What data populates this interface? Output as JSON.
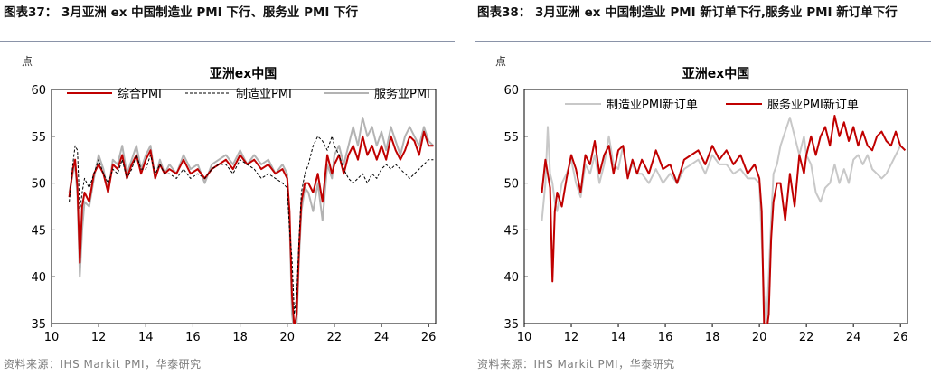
{
  "figures": [
    {
      "caption": "图表37： 3月亚洲 ex 中国制造业 PMI 下行、服务业 PMI 下行",
      "source": "资料来源：IHS Markit PMI，华泰研究"
    },
    {
      "caption": "图表38： 3月亚洲 ex 中国制造业 PMI 新订单下行,服务业 PMI 新订单下行",
      "source": "资料来源：IHS Markit PMI，华泰研究"
    }
  ],
  "chart_data": [
    {
      "type": "line",
      "title": "亚洲ex中国",
      "unit_label": "点",
      "xlabel": "",
      "ylabel": "",
      "xlim": [
        2010,
        2026.3
      ],
      "ylim": [
        35,
        60
      ],
      "x_ticks": [
        10,
        12,
        14,
        16,
        18,
        20,
        22,
        24,
        26
      ],
      "y_ticks": [
        35,
        40,
        45,
        50,
        55,
        60
      ],
      "grid": false,
      "legend": "top, inside",
      "series": [
        {
          "name": "综合PMI",
          "color": "#c00000",
          "style": "solid",
          "x": [
            2010.75,
            2010.9,
            2011.0,
            2011.1,
            2011.2,
            2011.3,
            2011.4,
            2011.6,
            2011.8,
            2012.0,
            2012.2,
            2012.4,
            2012.6,
            2012.8,
            2013.0,
            2013.2,
            2013.4,
            2013.6,
            2013.8,
            2014.0,
            2014.2,
            2014.4,
            2014.6,
            2014.8,
            2015.0,
            2015.3,
            2015.6,
            2015.9,
            2016.2,
            2016.5,
            2016.8,
            2017.1,
            2017.4,
            2017.7,
            2018.0,
            2018.3,
            2018.6,
            2018.9,
            2019.2,
            2019.5,
            2019.8,
            2020.0,
            2020.1,
            2020.2,
            2020.3,
            2020.4,
            2020.5,
            2020.6,
            2020.75,
            2020.9,
            2021.1,
            2021.3,
            2021.5,
            2021.7,
            2021.9,
            2022.0,
            2022.2,
            2022.4,
            2022.6,
            2022.8,
            2023.0,
            2023.2,
            2023.4,
            2023.6,
            2023.8,
            2024.0,
            2024.2,
            2024.4,
            2024.6,
            2024.8,
            2025.0,
            2025.2,
            2025.4,
            2025.6,
            2025.8,
            2026.0,
            2026.2
          ],
          "values": [
            48.5,
            51.5,
            52.5,
            49.5,
            41.5,
            47.5,
            49,
            48,
            51,
            52,
            51,
            49,
            52,
            51.5,
            53,
            50.5,
            52,
            53,
            51,
            52.5,
            53.5,
            50.5,
            52,
            51,
            51.5,
            51,
            52.5,
            51,
            51.5,
            50.5,
            51.5,
            52,
            52.5,
            51.5,
            53,
            52,
            52.5,
            51.5,
            52,
            51,
            51.5,
            50.5,
            47,
            38,
            34.5,
            36,
            43,
            48,
            50,
            50,
            49,
            51,
            48,
            53,
            51,
            52,
            53,
            51,
            53,
            54,
            52.5,
            55,
            53,
            54,
            52.5,
            54,
            52.5,
            55,
            53.5,
            52.5,
            53.5,
            55,
            54.5,
            53,
            55.5,
            54,
            54
          ]
        },
        {
          "name": "制造业PMI",
          "color": "#000000",
          "style": "dashed",
          "x": [
            2010.75,
            2010.9,
            2011.0,
            2011.1,
            2011.2,
            2011.3,
            2011.4,
            2011.6,
            2011.8,
            2012.0,
            2012.2,
            2012.4,
            2012.6,
            2012.8,
            2013.0,
            2013.2,
            2013.4,
            2013.6,
            2013.8,
            2014.0,
            2014.2,
            2014.4,
            2014.6,
            2014.8,
            2015.0,
            2015.3,
            2015.6,
            2015.9,
            2016.2,
            2016.5,
            2016.8,
            2017.1,
            2017.4,
            2017.7,
            2018.0,
            2018.3,
            2018.6,
            2018.9,
            2019.2,
            2019.5,
            2019.8,
            2020.0,
            2020.1,
            2020.2,
            2020.3,
            2020.4,
            2020.5,
            2020.6,
            2020.75,
            2020.9,
            2021.1,
            2021.3,
            2021.5,
            2021.7,
            2021.9,
            2022.0,
            2022.2,
            2022.4,
            2022.6,
            2022.8,
            2023.0,
            2023.2,
            2023.4,
            2023.6,
            2023.8,
            2024.0,
            2024.2,
            2024.4,
            2024.6,
            2024.8,
            2025.0,
            2025.2,
            2025.4,
            2025.6,
            2025.8,
            2026.0,
            2026.2
          ],
          "values": [
            48,
            52,
            54,
            53.5,
            47,
            49,
            50.5,
            49.5,
            51,
            52.5,
            51,
            50,
            51.5,
            51,
            52.5,
            50.5,
            51.5,
            53,
            51.5,
            51.5,
            53,
            51,
            52,
            51,
            51,
            50.5,
            51.5,
            50.5,
            51,
            50.5,
            51.5,
            52,
            52,
            51,
            52.5,
            52,
            51.5,
            50.5,
            51,
            50.5,
            50,
            49.5,
            45,
            42,
            36,
            38,
            44,
            49,
            51,
            52,
            54,
            55,
            54.5,
            53.5,
            55,
            54,
            53,
            51.5,
            50.5,
            50,
            50.5,
            51,
            50,
            51,
            50.5,
            51.5,
            52,
            51.5,
            52,
            51.5,
            51,
            50.5,
            51,
            51.5,
            52,
            52.5,
            52.5
          ]
        },
        {
          "name": "服务业PMI",
          "color": "#b3b3b3",
          "style": "solid",
          "x": [
            2010.75,
            2010.9,
            2011.0,
            2011.1,
            2011.2,
            2011.3,
            2011.4,
            2011.6,
            2011.8,
            2012.0,
            2012.2,
            2012.4,
            2012.6,
            2012.8,
            2013.0,
            2013.2,
            2013.4,
            2013.6,
            2013.8,
            2014.0,
            2014.2,
            2014.4,
            2014.6,
            2014.8,
            2015.0,
            2015.3,
            2015.6,
            2015.9,
            2016.2,
            2016.5,
            2016.8,
            2017.1,
            2017.4,
            2017.7,
            2018.0,
            2018.3,
            2018.6,
            2018.9,
            2019.2,
            2019.5,
            2019.8,
            2020.0,
            2020.1,
            2020.2,
            2020.3,
            2020.4,
            2020.5,
            2020.6,
            2020.75,
            2020.9,
            2021.1,
            2021.3,
            2021.5,
            2021.7,
            2021.9,
            2022.0,
            2022.2,
            2022.4,
            2022.6,
            2022.8,
            2023.0,
            2023.2,
            2023.4,
            2023.6,
            2023.8,
            2024.0,
            2024.2,
            2024.4,
            2024.6,
            2024.8,
            2025.0,
            2025.2,
            2025.4,
            2025.6,
            2025.8,
            2026.0,
            2026.2
          ],
          "values": [
            49,
            51,
            52,
            48.5,
            40,
            45,
            48,
            47.5,
            50.5,
            53,
            51.5,
            49,
            52.5,
            52,
            54,
            51,
            52.5,
            54,
            51.5,
            53,
            54,
            50.5,
            52.5,
            51,
            52,
            51,
            53,
            51.5,
            52,
            50,
            52,
            52.5,
            53,
            52,
            53.5,
            52,
            53,
            52,
            52.5,
            51,
            52,
            51,
            46,
            36,
            34,
            35,
            42,
            47,
            49.5,
            49,
            47,
            50,
            46,
            52,
            50.5,
            53,
            54,
            52,
            54,
            56,
            54,
            57,
            55,
            56,
            54,
            55.5,
            53.5,
            56,
            54.5,
            53,
            55,
            56,
            55,
            54,
            56,
            54.5,
            54
          ]
        }
      ]
    },
    {
      "type": "line",
      "title": "亚洲ex中国",
      "unit_label": "点",
      "xlabel": "",
      "ylabel": "",
      "xlim": [
        2010,
        2026.3
      ],
      "ylim": [
        35,
        60
      ],
      "x_ticks": [
        10,
        12,
        14,
        16,
        18,
        20,
        22,
        24,
        26
      ],
      "y_ticks": [
        35,
        40,
        45,
        50,
        55,
        60
      ],
      "grid": false,
      "legend": "top, inside",
      "series": [
        {
          "name": "制造业PMI新订单",
          "color": "#c8c8c8",
          "style": "solid",
          "x": [
            2010.75,
            2010.9,
            2011.0,
            2011.1,
            2011.2,
            2011.3,
            2011.4,
            2011.6,
            2011.8,
            2012.0,
            2012.2,
            2012.4,
            2012.6,
            2012.8,
            2013.0,
            2013.2,
            2013.4,
            2013.6,
            2013.8,
            2014.0,
            2014.2,
            2014.4,
            2014.6,
            2014.8,
            2015.0,
            2015.3,
            2015.6,
            2015.9,
            2016.2,
            2016.5,
            2016.8,
            2017.1,
            2017.4,
            2017.7,
            2018.0,
            2018.3,
            2018.6,
            2018.9,
            2019.2,
            2019.5,
            2019.8,
            2020.0,
            2020.1,
            2020.2,
            2020.3,
            2020.4,
            2020.5,
            2020.6,
            2020.75,
            2020.9,
            2021.1,
            2021.3,
            2021.5,
            2021.7,
            2021.9,
            2022.0,
            2022.2,
            2022.4,
            2022.6,
            2022.8,
            2023.0,
            2023.2,
            2023.4,
            2023.6,
            2023.8,
            2024.0,
            2024.2,
            2024.4,
            2024.6,
            2024.8,
            2025.0,
            2025.2,
            2025.4,
            2025.6,
            2025.8,
            2026.0,
            2026.2
          ],
          "values": [
            46,
            50,
            56,
            51,
            50,
            48,
            47,
            50,
            51,
            52.5,
            50,
            48.5,
            52,
            51,
            53,
            50,
            52,
            55,
            52,
            51.5,
            54,
            51,
            52,
            51,
            51,
            50,
            51.5,
            50,
            51,
            50,
            51.5,
            52,
            52.5,
            51,
            53,
            52,
            52,
            51,
            51.5,
            50.5,
            50.5,
            50,
            44,
            38,
            35,
            40,
            46,
            51,
            52,
            54,
            55.5,
            57,
            55,
            53,
            55,
            53,
            52,
            49,
            48,
            49.5,
            50,
            52,
            50,
            51.5,
            50,
            52.5,
            53,
            52,
            53,
            51.5,
            51,
            50.5,
            51,
            52,
            53,
            54,
            53.5
          ]
        },
        {
          "name": "服务业PMI新订单",
          "color": "#c00000",
          "style": "solid",
          "x": [
            2010.75,
            2010.9,
            2011.0,
            2011.1,
            2011.2,
            2011.3,
            2011.4,
            2011.6,
            2011.8,
            2012.0,
            2012.2,
            2012.4,
            2012.6,
            2012.8,
            2013.0,
            2013.2,
            2013.4,
            2013.6,
            2013.8,
            2014.0,
            2014.2,
            2014.4,
            2014.6,
            2014.8,
            2015.0,
            2015.3,
            2015.6,
            2015.9,
            2016.2,
            2016.5,
            2016.8,
            2017.1,
            2017.4,
            2017.7,
            2018.0,
            2018.3,
            2018.6,
            2018.9,
            2019.2,
            2019.5,
            2019.8,
            2020.0,
            2020.1,
            2020.2,
            2020.3,
            2020.4,
            2020.5,
            2020.6,
            2020.75,
            2020.9,
            2021.1,
            2021.3,
            2021.5,
            2021.7,
            2021.9,
            2022.0,
            2022.2,
            2022.4,
            2022.6,
            2022.8,
            2023.0,
            2023.2,
            2023.4,
            2023.6,
            2023.8,
            2024.0,
            2024.2,
            2024.4,
            2024.6,
            2024.8,
            2025.0,
            2025.2,
            2025.4,
            2025.6,
            2025.8,
            2026.0,
            2026.2
          ],
          "values": [
            49,
            52.5,
            51,
            49.5,
            39.5,
            47,
            49,
            47.5,
            50.5,
            53,
            51.5,
            49,
            53,
            52,
            54.5,
            51,
            53,
            54,
            51,
            53.5,
            54,
            50.5,
            52.5,
            51,
            52.5,
            51,
            53.5,
            51.5,
            52,
            50,
            52.5,
            53,
            53.5,
            52,
            54,
            52.5,
            53.5,
            52,
            53,
            51,
            52,
            50.5,
            47,
            35,
            34,
            36,
            44,
            48,
            50,
            50,
            46,
            51,
            47.5,
            53,
            51,
            53,
            55,
            53,
            55,
            56,
            54,
            57.2,
            55,
            56.5,
            54.5,
            56,
            54,
            55.5,
            54,
            53.5,
            55,
            55.5,
            54.5,
            54,
            55.5,
            54,
            53.5
          ]
        }
      ]
    }
  ]
}
